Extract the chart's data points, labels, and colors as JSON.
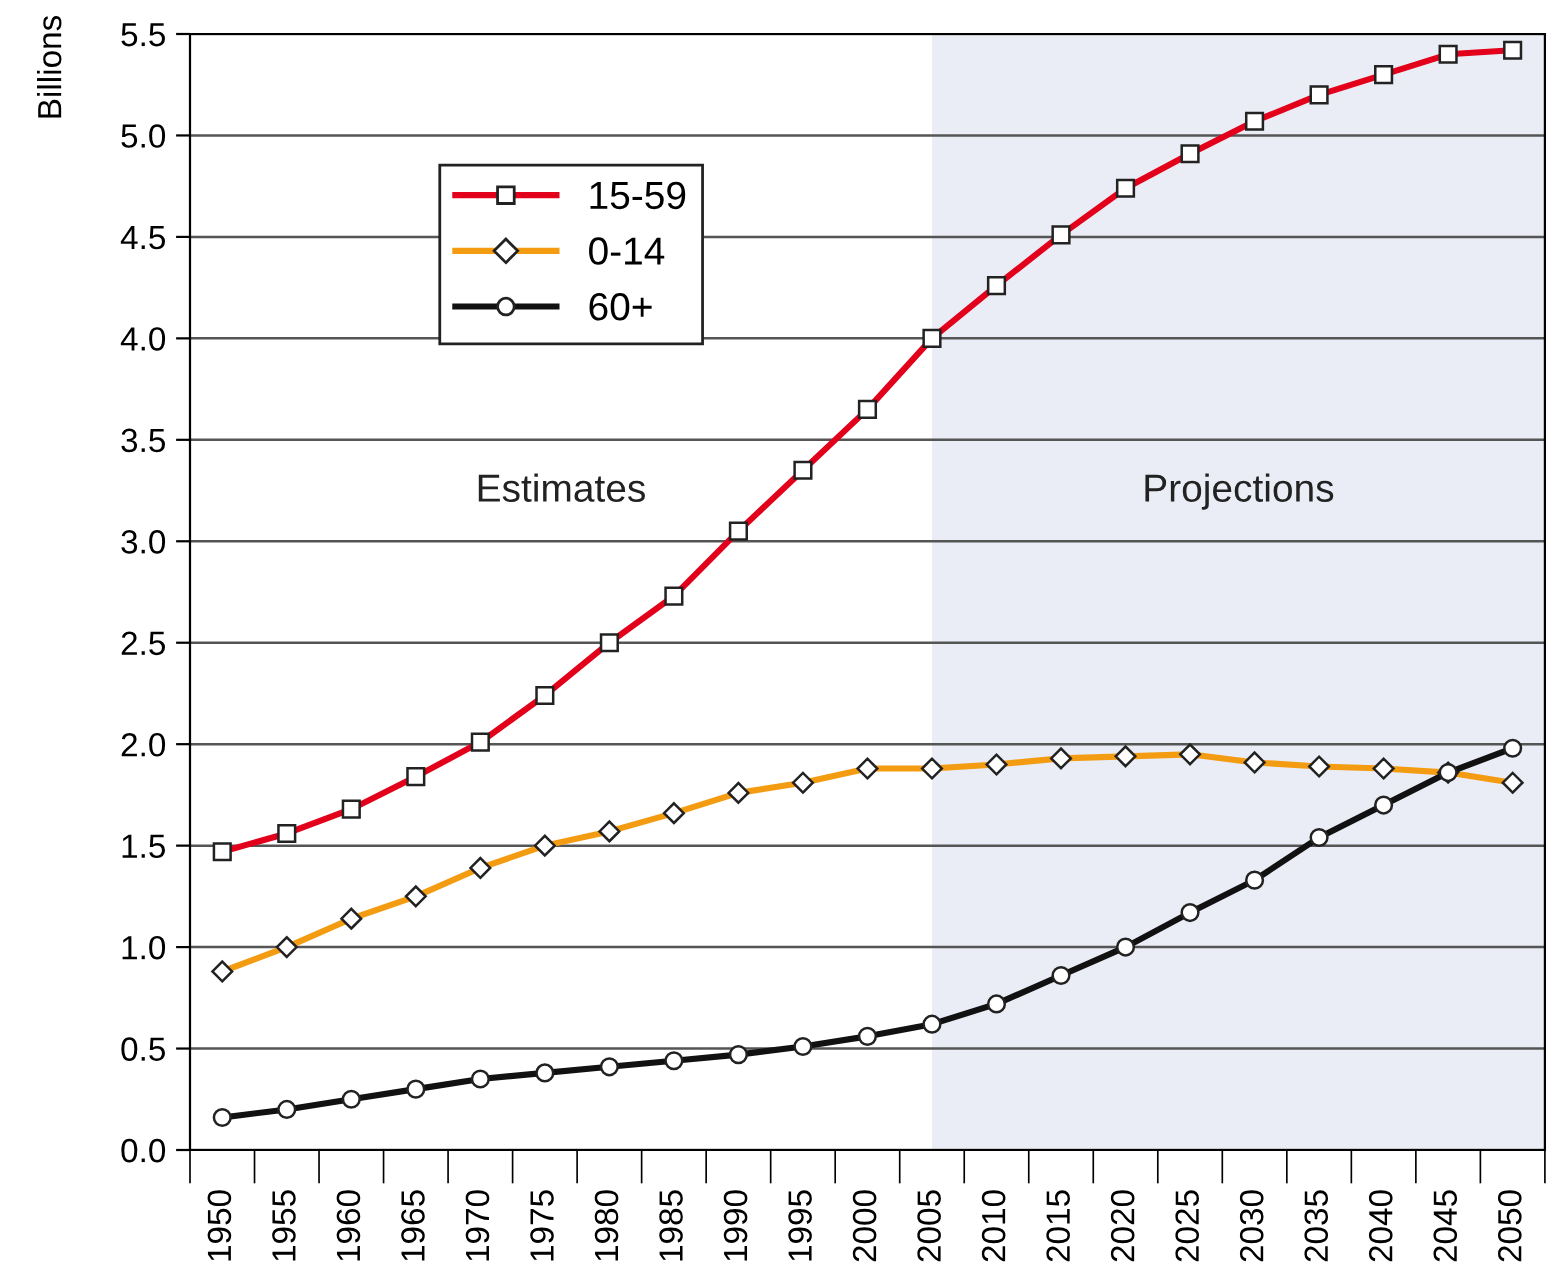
{
  "chart_data": {
    "type": "line",
    "ylabel": "Billions",
    "categories": [
      "1950",
      "1955",
      "1960",
      "1965",
      "1970",
      "1975",
      "1980",
      "1985",
      "1990",
      "1995",
      "2000",
      "2005",
      "2010",
      "2015",
      "2020",
      "2025",
      "2030",
      "2035",
      "2040",
      "2045",
      "2050"
    ],
    "series": [
      {
        "name": "15-59",
        "color": "#e2001a",
        "marker": "square",
        "values": [
          1.47,
          1.56,
          1.68,
          1.84,
          2.01,
          2.24,
          2.5,
          2.73,
          3.05,
          3.35,
          3.65,
          4.0,
          4.26,
          4.51,
          4.74,
          4.91,
          5.07,
          5.2,
          5.3,
          5.4,
          5.42
        ]
      },
      {
        "name": "0-14",
        "color": "#f39c12",
        "marker": "diamond",
        "values": [
          0.88,
          1.0,
          1.14,
          1.25,
          1.39,
          1.5,
          1.57,
          1.66,
          1.76,
          1.81,
          1.88,
          1.88,
          1.9,
          1.93,
          1.94,
          1.95,
          1.91,
          1.89,
          1.88,
          1.86,
          1.81
        ]
      },
      {
        "name": "60+",
        "color": "#111111",
        "marker": "circle",
        "values": [
          0.16,
          0.2,
          0.25,
          0.3,
          0.35,
          0.38,
          0.41,
          0.44,
          0.47,
          0.51,
          0.56,
          0.62,
          0.72,
          0.86,
          1.0,
          1.17,
          1.33,
          1.54,
          1.7,
          1.86,
          1.98
        ]
      }
    ],
    "ylim": [
      0,
      5.5
    ],
    "yticks": [
      {
        "value": 0,
        "label": "0.0"
      },
      {
        "value": 0.5,
        "label": "0.5"
      },
      {
        "value": 1,
        "label": "1.0"
      },
      {
        "value": 1.5,
        "label": "1.5"
      },
      {
        "value": 2,
        "label": "2.0"
      },
      {
        "value": 2.5,
        "label": "2.5"
      },
      {
        "value": 3,
        "label": "3.0"
      },
      {
        "value": 3.5,
        "label": "3.5"
      },
      {
        "value": 4,
        "label": "4.0"
      },
      {
        "value": 4.5,
        "label": "4.5"
      },
      {
        "value": 5,
        "label": "5.0"
      },
      {
        "value": 5.5,
        "label": "5.5"
      }
    ],
    "bands": [
      {
        "axis": "x",
        "from": "2005",
        "to": "2050",
        "color": "#eaedf5"
      }
    ],
    "annotations": [
      "Estimates",
      "Projections"
    ],
    "grid": "y",
    "legend": "top left",
    "line_style": "solid"
  }
}
